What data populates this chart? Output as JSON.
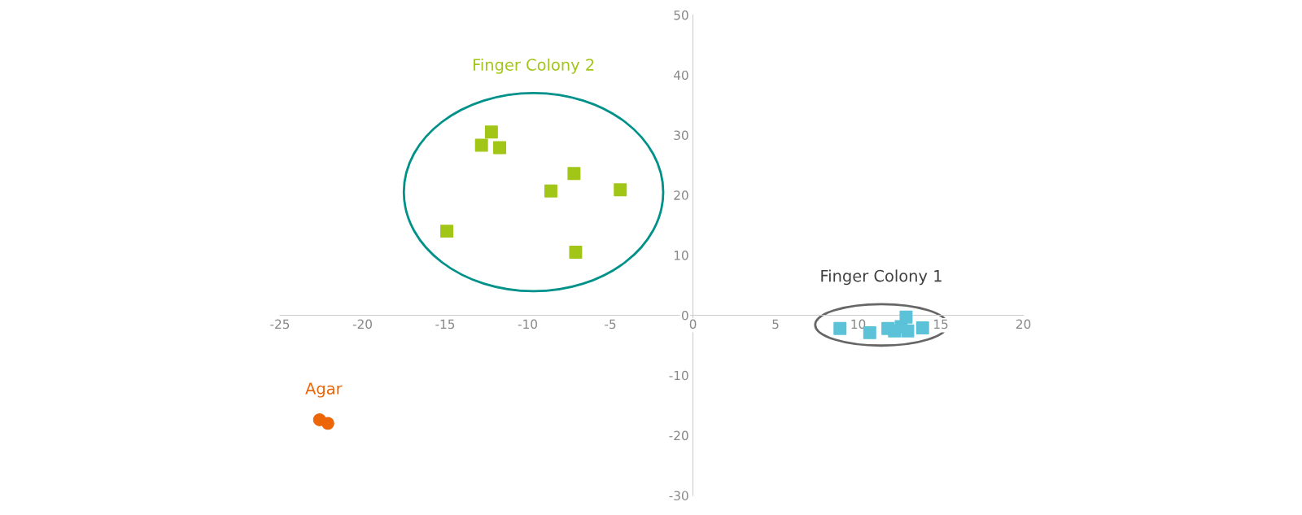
{
  "chart_data": {
    "type": "scatter",
    "xlim": [
      -25,
      20
    ],
    "ylim": [
      -30,
      50
    ],
    "xticks": [
      -25,
      -20,
      -15,
      -10,
      -5,
      0,
      5,
      10,
      15,
      20
    ],
    "yticks": [
      -30,
      -20,
      -10,
      0,
      10,
      20,
      30,
      40,
      50
    ],
    "grid": false,
    "legend": false,
    "series": [
      {
        "name": "Finger Colony 2",
        "color": "#a2c617",
        "marker": "square",
        "x": [
          -12.2,
          -12.8,
          -11.7,
          -7.2,
          -8.6,
          -4.4,
          -14.9,
          -7.1
        ],
        "values": [
          30.5,
          28.3,
          27.9,
          23.6,
          20.7,
          20.9,
          14.0,
          10.5
        ]
      },
      {
        "name": "Finger Colony 1",
        "color": "#5bc2d8",
        "marker": "square",
        "x": [
          8.9,
          10.7,
          11.8,
          12.2,
          12.6,
          12.9,
          13.0,
          13.9
        ],
        "values": [
          -2.2,
          -2.9,
          -2.2,
          -2.6,
          -1.9,
          -0.3,
          -2.6,
          -2.1
        ]
      },
      {
        "name": "Agar",
        "color": "#ec6608",
        "marker": "circle",
        "x": [
          -22.6,
          -22.1
        ],
        "values": [
          -17.4,
          -18.0
        ]
      }
    ]
  }
}
